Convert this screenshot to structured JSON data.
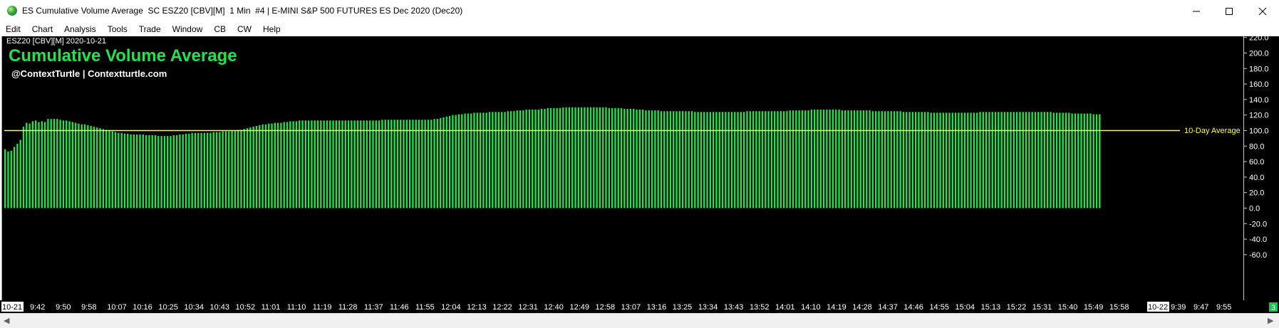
{
  "window": {
    "title": "ES Cumulative Volume Average  SC ESZ20 [CBV][M]  1 Min  #4 | E-MINI S&P 500 FUTURES ES Dec 2020 (Dec20)"
  },
  "menu": [
    "Edit",
    "Chart",
    "Analysis",
    "Tools",
    "Trade",
    "Window",
    "CB",
    "CW",
    "Help"
  ],
  "chart": {
    "label": "ESZ20 [CBV][M] 2020-10-21",
    "title": "Cumulative Volume Average",
    "subtitle": "@ContextTurtle | Contextturtle.com",
    "average_label": "10-Day Average",
    "bar_color": "#22e64a",
    "average_line_color": "#ffff33",
    "title_color": "#1ee64a",
    "status_badge": "3"
  },
  "chart_data": {
    "type": "bar",
    "ylim": [
      -70,
      230
    ],
    "y_ticks": [
      "220.0",
      "200.0",
      "180.0",
      "160.0",
      "140.0",
      "120.0",
      "100.0",
      "80.0",
      "60.0",
      "40.0",
      "20.0",
      "0.0",
      "-20.0",
      "-40.0",
      "-60.0"
    ],
    "x_tick_labels": [
      "10-21",
      "9:42",
      "9:50",
      "9:58",
      "10:07",
      "10:16",
      "10:25",
      "10:34",
      "10:43",
      "10:52",
      "11:01",
      "11:10",
      "11:19",
      "11:28",
      "11:37",
      "11:46",
      "11:55",
      "12:04",
      "12:13",
      "12:22",
      "12:31",
      "12:40",
      "12:49",
      "12:58",
      "13:07",
      "13:16",
      "13:25",
      "13:34",
      "13:43",
      "13:52",
      "14:01",
      "14:10",
      "14:19",
      "14:28",
      "14:37",
      "14:46",
      "14:55",
      "15:04",
      "15:13",
      "15:22",
      "15:31",
      "15:40",
      "15:49",
      "15:58",
      "10-22",
      "9:39",
      "9:47",
      "9:55"
    ],
    "average_value": 100,
    "series": [
      {
        "values": [
          76,
          73,
          74,
          79,
          83,
          88,
          105,
          110,
          109,
          112,
          113,
          111,
          112,
          111,
          115,
          115,
          115,
          115,
          114,
          113,
          113,
          112,
          111,
          110,
          109,
          108,
          108,
          107,
          106,
          105,
          104,
          103,
          102,
          101,
          100,
          99,
          98,
          97,
          97,
          96,
          96,
          95,
          95,
          95,
          95,
          95,
          94,
          94,
          94,
          94,
          93,
          93,
          93,
          93,
          93,
          94,
          94,
          95,
          95,
          96,
          96,
          97,
          97,
          97,
          97,
          97,
          97,
          97,
          98,
          98,
          98,
          99,
          99,
          99,
          100,
          100,
          101,
          101,
          102,
          103,
          104,
          105,
          106,
          107,
          108,
          108,
          109,
          109,
          110,
          110,
          110,
          111,
          111,
          112,
          112,
          112,
          113,
          113,
          113,
          113,
          113,
          113,
          113,
          113,
          113,
          113,
          113,
          113,
          113,
          113,
          113,
          113,
          113,
          113,
          113,
          113,
          113,
          113,
          113,
          113,
          113,
          113,
          113,
          114,
          114,
          114,
          114,
          114,
          114,
          114,
          114,
          114,
          114,
          114,
          114,
          114,
          114,
          114,
          114,
          114,
          115,
          115,
          116,
          117,
          118,
          119,
          120,
          120,
          121,
          121,
          122,
          122,
          122,
          123,
          123,
          123,
          123,
          123,
          124,
          124,
          124,
          124,
          124,
          124,
          125,
          125,
          125,
          126,
          126,
          126,
          127,
          127,
          127,
          127,
          127,
          128,
          128,
          129,
          129,
          129,
          129,
          129,
          130,
          130,
          130,
          130,
          130,
          130,
          130,
          130,
          130,
          130,
          130,
          130,
          130,
          130,
          130,
          129,
          129,
          129,
          129,
          129,
          128,
          128,
          128,
          128,
          127,
          127,
          127,
          126,
          126,
          126,
          126,
          126,
          125,
          125,
          125,
          125,
          125,
          125,
          125,
          125,
          125,
          125,
          125,
          124,
          124,
          124,
          124,
          124,
          124,
          124,
          124,
          124,
          124,
          124,
          124,
          124,
          124,
          124,
          124,
          124,
          125,
          125,
          125,
          125,
          125,
          125,
          125,
          125,
          125,
          125,
          125,
          125,
          125,
          125,
          126,
          126,
          126,
          126,
          126,
          126,
          126,
          127,
          127,
          127,
          127,
          127,
          127,
          127,
          127,
          127,
          127,
          126,
          126,
          126,
          126,
          126,
          126,
          126,
          126,
          126,
          126,
          125,
          125,
          125,
          125,
          125,
          125,
          125,
          125,
          125,
          125,
          124,
          124,
          124,
          124,
          124,
          124,
          124,
          124,
          124,
          123,
          123,
          123,
          123,
          123,
          123,
          123,
          123,
          123,
          123,
          123,
          123,
          123,
          123,
          123,
          123,
          124,
          124,
          124,
          124,
          124,
          124,
          124,
          124,
          124,
          124,
          124,
          124,
          124,
          124,
          124,
          124,
          124,
          124,
          124,
          124,
          124,
          124,
          124,
          124,
          123,
          123,
          123,
          123,
          123,
          123,
          122,
          122,
          122,
          122,
          122,
          122,
          122,
          121,
          121,
          121
        ]
      }
    ],
    "grid": false,
    "legend": "none"
  }
}
